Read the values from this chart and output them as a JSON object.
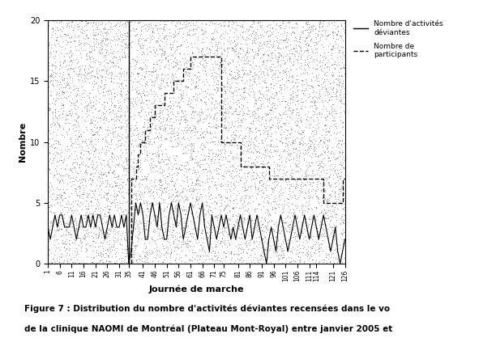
{
  "xlabel": "Journée de marche",
  "ylabel": "Nombre",
  "ylim": [
    0,
    20
  ],
  "yticks": [
    0,
    5,
    10,
    15,
    20
  ],
  "xtick_labels": [
    "1",
    "6",
    "11",
    "16",
    "21",
    "26",
    "31",
    "35",
    "41",
    "46",
    "51",
    "56",
    "61",
    "66",
    "71",
    "75",
    "81",
    "86",
    "91",
    "96",
    "101",
    "106",
    "111",
    "114",
    "121",
    "126"
  ],
  "xtick_positions": [
    1,
    6,
    11,
    16,
    21,
    26,
    31,
    35,
    41,
    46,
    51,
    56,
    61,
    66,
    71,
    75,
    81,
    86,
    91,
    96,
    101,
    106,
    111,
    114,
    121,
    126
  ],
  "vertical_line_x": 35,
  "legend_entry_1": "Nombre d'activités\ndéviantes",
  "legend_entry_2": "Nombre de\nparticipants",
  "fig_bg_color": "#ffffff",
  "plot_bg_color": "#ffffff",
  "noise_color": "#555555",
  "line_color": "#000000",
  "activities_deviantes": [
    3,
    2,
    3,
    4,
    3,
    4,
    4,
    3,
    3,
    3,
    4,
    3,
    2,
    3,
    4,
    3,
    3,
    4,
    3,
    4,
    3,
    4,
    4,
    3,
    2,
    3,
    4,
    3,
    4,
    3,
    3,
    4,
    3,
    4,
    0,
    1,
    3,
    5,
    4,
    5,
    4,
    2,
    2,
    4,
    5,
    4,
    3,
    5,
    3,
    2,
    2,
    4,
    5,
    4,
    3,
    5,
    4,
    2,
    3,
    4,
    5,
    4,
    3,
    2,
    4,
    5,
    3,
    2,
    1,
    4,
    3,
    2,
    3,
    4,
    3,
    4,
    3,
    2,
    3,
    2,
    3,
    4,
    3,
    2,
    3,
    4,
    2,
    3,
    4,
    3,
    2,
    1,
    0,
    2,
    3,
    2,
    1,
    3,
    4,
    3,
    2,
    1,
    2,
    3,
    4,
    3,
    2,
    3,
    4,
    3,
    2,
    3,
    4,
    3,
    2,
    3,
    4,
    3,
    2,
    1,
    2,
    3,
    1,
    0,
    1,
    2
  ],
  "participants": [
    0,
    0,
    0,
    0,
    0,
    0,
    0,
    0,
    0,
    0,
    0,
    0,
    0,
    0,
    0,
    0,
    0,
    0,
    0,
    0,
    0,
    0,
    0,
    0,
    0,
    0,
    0,
    0,
    0,
    0,
    0,
    0,
    0,
    0,
    0,
    7,
    7,
    8,
    9,
    10,
    10,
    11,
    11,
    12,
    12,
    13,
    13,
    13,
    13,
    14,
    14,
    14,
    14,
    15,
    15,
    15,
    15,
    16,
    16,
    16,
    17,
    17,
    17,
    17,
    17,
    17,
    17,
    17,
    17,
    17,
    17,
    17,
    17,
    10,
    10,
    10,
    10,
    10,
    10,
    10,
    10,
    8,
    8,
    8,
    8,
    8,
    8,
    8,
    8,
    8,
    8,
    8,
    8,
    7,
    7,
    7,
    7,
    7,
    7,
    7,
    7,
    7,
    7,
    7,
    7,
    7,
    7,
    7,
    7,
    7,
    7,
    7,
    7,
    7,
    7,
    7,
    5,
    5,
    5,
    5,
    5,
    5,
    5,
    5,
    7,
    7
  ],
  "caption_line1": "Figure 7 : Distribution du nombre d'activités déviantes recensées dans le vo",
  "caption_line2": "de la clinique NAOMI de Montréal (Plateau Mont-Royal) entre janvier 2005 et"
}
